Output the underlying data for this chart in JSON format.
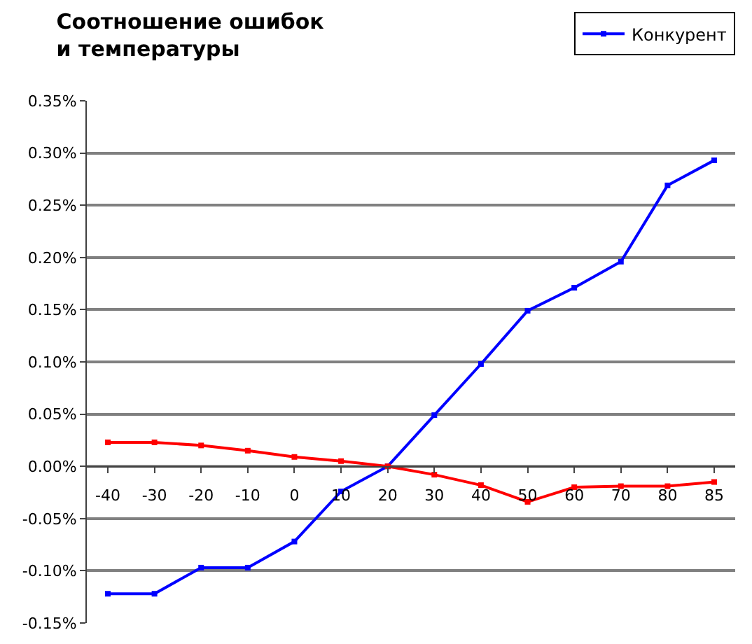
{
  "chart_data": {
    "type": "line",
    "title": "Соотношение ошибок\nи температуры",
    "categories": [
      "-40",
      "-30",
      "-20",
      "-10",
      "0",
      "10",
      "20",
      "30",
      "40",
      "50",
      "60",
      "70",
      "80",
      "85"
    ],
    "series": [
      {
        "name": "Конкурент",
        "color": "#0000ff",
        "values": [
          -0.122,
          -0.122,
          -0.097,
          -0.097,
          -0.072,
          -0.024,
          0.0,
          0.049,
          0.098,
          0.149,
          0.171,
          0.196,
          0.269,
          0.293
        ]
      },
      {
        "color": "#ff0000",
        "values": [
          0.023,
          0.023,
          0.02,
          0.015,
          0.009,
          0.005,
          0.0,
          -0.008,
          -0.018,
          -0.034,
          -0.02,
          -0.019,
          -0.019,
          -0.015
        ]
      }
    ],
    "ylim": [
      -0.15,
      0.35
    ],
    "yticks": [
      {
        "value": -0.15,
        "label": "-0.15%"
      },
      {
        "value": -0.1,
        "label": "-0.10%"
      },
      {
        "value": -0.05,
        "label": "-0.05%"
      },
      {
        "value": 0,
        "label": "0.00%"
      },
      {
        "value": 0.05,
        "label": "0.05%"
      },
      {
        "value": 0.1,
        "label": "0.10%"
      },
      {
        "value": 0.15,
        "label": "0.15%"
      },
      {
        "value": 0.2,
        "label": "0.20%"
      },
      {
        "value": 0.25,
        "label": "0.25%"
      },
      {
        "value": 0.3,
        "label": "0.30%"
      },
      {
        "value": 0.35,
        "label": "0.35%"
      }
    ],
    "grid": "y",
    "legend": "top right",
    "marker": "square",
    "line_style": "solid"
  }
}
